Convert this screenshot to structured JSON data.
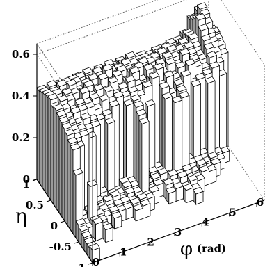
{
  "chart_data": {
    "type": "lego",
    "title": "",
    "xlabel": "φ",
    "xlabel_unit": "(rad)",
    "ylabel": "η",
    "zlabel": "",
    "xlim": [
      0,
      6.28
    ],
    "ylim": [
      -1,
      1
    ],
    "zlim": [
      0,
      0.65
    ],
    "grid": false,
    "x_ticks": [
      "0",
      "1",
      "2",
      "3",
      "4",
      "5",
      "6"
    ],
    "y_ticks": [
      "-1",
      "-0.5",
      "0",
      "0.5",
      "1"
    ],
    "z_ticks": [
      "0",
      "0.2",
      "0.4",
      "0.6"
    ],
    "x_tick_values": [
      0,
      1,
      2,
      3,
      4,
      5,
      6
    ],
    "y_tick_values": [
      -1,
      -0.5,
      0,
      0.5,
      1
    ],
    "z_tick_values": [
      0,
      0.2,
      0.4,
      0.6
    ],
    "phi_bins": 24,
    "eta_bins": 20,
    "eta_edges": [
      -1.0,
      1.0
    ],
    "phi_edges": [
      0.0,
      6.2832
    ],
    "values_by_eta_bin_from_low": [
      [
        0.06,
        0.0,
        0.0,
        0.0,
        0.0,
        0.0,
        0.0,
        0.0,
        0.0,
        0.0,
        0.0,
        0.0,
        0.0,
        0.0,
        0.0,
        0.0,
        0.0,
        0.0,
        0.0,
        0.0,
        0.0,
        0.0,
        0.0,
        0.0
      ],
      [
        0.05,
        0.0,
        0.0,
        0.0,
        0.0,
        0.0,
        0.0,
        0.0,
        0.0,
        0.0,
        0.0,
        0.0,
        0.0,
        0.0,
        0.0,
        0.0,
        0.0,
        0.0,
        0.0,
        0.0,
        0.0,
        0.0,
        0.0,
        0.0
      ],
      [
        0.05,
        0.0,
        0.0,
        0.0,
        0.0,
        0.0,
        0.0,
        0.0,
        0.0,
        0.0,
        0.0,
        0.0,
        0.0,
        0.0,
        0.0,
        0.0,
        0.0,
        0.0,
        0.0,
        0.0,
        0.0,
        0.0,
        0.0,
        0.0
      ],
      [
        0.06,
        0.0,
        0.0,
        0.06,
        0.0,
        0.0,
        0.0,
        0.0,
        0.0,
        0.0,
        0.0,
        0.0,
        0.0,
        0.0,
        0.0,
        0.0,
        0.0,
        0.0,
        0.0,
        0.0,
        0.0,
        0.0,
        0.0,
        0.0
      ],
      [
        0.07,
        0.0,
        0.08,
        0.05,
        0.0,
        0.0,
        0.0,
        0.0,
        0.0,
        0.0,
        0.0,
        0.0,
        0.0,
        0.0,
        0.0,
        0.0,
        0.05,
        0.0,
        0.0,
        0.0,
        0.0,
        0.0,
        0.0,
        0.0
      ],
      [
        0.08,
        0.05,
        0.07,
        0.06,
        0.0,
        0.05,
        0.0,
        0.0,
        0.05,
        0.06,
        0.0,
        0.0,
        0.0,
        0.0,
        0.0,
        0.06,
        0.05,
        0.0,
        0.0,
        0.0,
        0.0,
        0.0,
        0.0,
        0.0
      ],
      [
        0.3,
        0.05,
        0.22,
        0.07,
        0.05,
        0.06,
        0.05,
        0.05,
        0.06,
        0.07,
        0.06,
        0.0,
        0.0,
        0.05,
        0.06,
        0.05,
        0.07,
        0.06,
        0.0,
        0.0,
        0.0,
        0.0,
        0.0,
        0.0
      ],
      [
        0.4,
        0.07,
        0.08,
        0.05,
        0.06,
        0.05,
        0.06,
        0.06,
        0.05,
        0.06,
        0.05,
        0.06,
        0.0,
        0.07,
        0.06,
        0.08,
        0.06,
        0.05,
        0.07,
        0.06,
        0.0,
        0.0,
        0.0,
        0.0
      ],
      [
        0.41,
        0.38,
        0.06,
        0.07,
        0.05,
        0.07,
        0.08,
        0.05,
        0.07,
        0.06,
        0.38,
        0.05,
        0.06,
        0.05,
        0.08,
        0.07,
        0.08,
        0.06,
        0.08,
        0.05,
        0.06,
        0.0,
        0.0,
        0.0
      ],
      [
        0.43,
        0.4,
        0.4,
        0.38,
        0.06,
        0.05,
        0.07,
        0.06,
        0.08,
        0.07,
        0.4,
        0.06,
        0.07,
        0.08,
        0.06,
        0.4,
        0.41,
        0.08,
        0.08,
        0.06,
        0.07,
        0.05,
        0.0,
        0.0
      ],
      [
        0.44,
        0.42,
        0.41,
        0.4,
        0.4,
        0.07,
        0.39,
        0.05,
        0.08,
        0.07,
        0.42,
        0.06,
        0.08,
        0.07,
        0.41,
        0.06,
        0.42,
        0.08,
        0.42,
        0.08,
        0.41,
        0.06,
        0.05,
        0.0
      ],
      [
        0.45,
        0.43,
        0.42,
        0.43,
        0.41,
        0.4,
        0.41,
        0.44,
        0.05,
        0.42,
        0.43,
        0.06,
        0.38,
        0.07,
        0.44,
        0.4,
        0.43,
        0.46,
        0.41,
        0.42,
        0.43,
        0.45,
        0.4,
        0.0
      ],
      [
        0.46,
        0.44,
        0.45,
        0.45,
        0.45,
        0.43,
        0.46,
        0.44,
        0.45,
        0.44,
        0.45,
        0.42,
        0.45,
        0.48,
        0.43,
        0.46,
        0.44,
        0.43,
        0.48,
        0.46,
        0.44,
        0.48,
        0.44,
        0.0
      ],
      [
        0.47,
        0.46,
        0.44,
        0.46,
        0.45,
        0.46,
        0.43,
        0.47,
        0.44,
        0.46,
        0.48,
        0.45,
        0.43,
        0.46,
        0.49,
        0.44,
        0.43,
        0.46,
        0.45,
        0.47,
        0.46,
        0.5,
        0.47,
        0.45
      ],
      [
        0.46,
        0.48,
        0.47,
        0.44,
        0.48,
        0.45,
        0.47,
        0.45,
        0.48,
        0.44,
        0.46,
        0.49,
        0.44,
        0.48,
        0.45,
        0.44,
        0.47,
        0.45,
        0.49,
        0.48,
        0.46,
        0.52,
        0.5,
        0.47
      ],
      [
        0.48,
        0.45,
        0.48,
        0.47,
        0.46,
        0.48,
        0.45,
        0.49,
        0.46,
        0.48,
        0.44,
        0.47,
        0.48,
        0.46,
        0.44,
        0.46,
        0.48,
        0.47,
        0.46,
        0.49,
        0.48,
        0.55,
        0.52,
        0.48
      ],
      [
        0.47,
        0.47,
        0.46,
        0.49,
        0.45,
        0.47,
        0.48,
        0.46,
        0.5,
        0.45,
        0.47,
        0.46,
        0.45,
        0.47,
        0.46,
        0.44,
        0.45,
        0.48,
        0.47,
        0.46,
        0.5,
        0.58,
        0.55,
        0.49
      ],
      [
        0.46,
        0.46,
        0.48,
        0.46,
        0.47,
        0.44,
        0.46,
        0.48,
        0.47,
        0.46,
        0.46,
        0.47,
        0.46,
        0.45,
        0.45,
        0.45,
        0.46,
        0.44,
        0.45,
        0.47,
        0.49,
        0.56,
        0.57,
        0.48
      ],
      [
        0.45,
        0.47,
        0.45,
        0.46,
        0.46,
        0.46,
        0.47,
        0.44,
        0.45,
        0.47,
        0.44,
        0.45,
        0.47,
        0.44,
        0.44,
        0.43,
        0.44,
        0.45,
        0.44,
        0.45,
        0.48,
        0.54,
        0.58,
        0.46
      ],
      [
        0.44,
        0.43,
        0.44,
        0.43,
        0.43,
        0.44,
        0.43,
        0.43,
        0.44,
        0.43,
        0.43,
        0.44,
        0.43,
        0.43,
        0.43,
        0.42,
        0.43,
        0.43,
        0.44,
        0.44,
        0.46,
        0.52,
        0.55,
        0.45
      ]
    ],
    "colors": {
      "front_face": "#ffffff",
      "side_face": "#9a9a9a",
      "top_face": "#ffffff",
      "edge": "#000000",
      "frame": "#000000",
      "frame_dashed": "#666666"
    }
  }
}
